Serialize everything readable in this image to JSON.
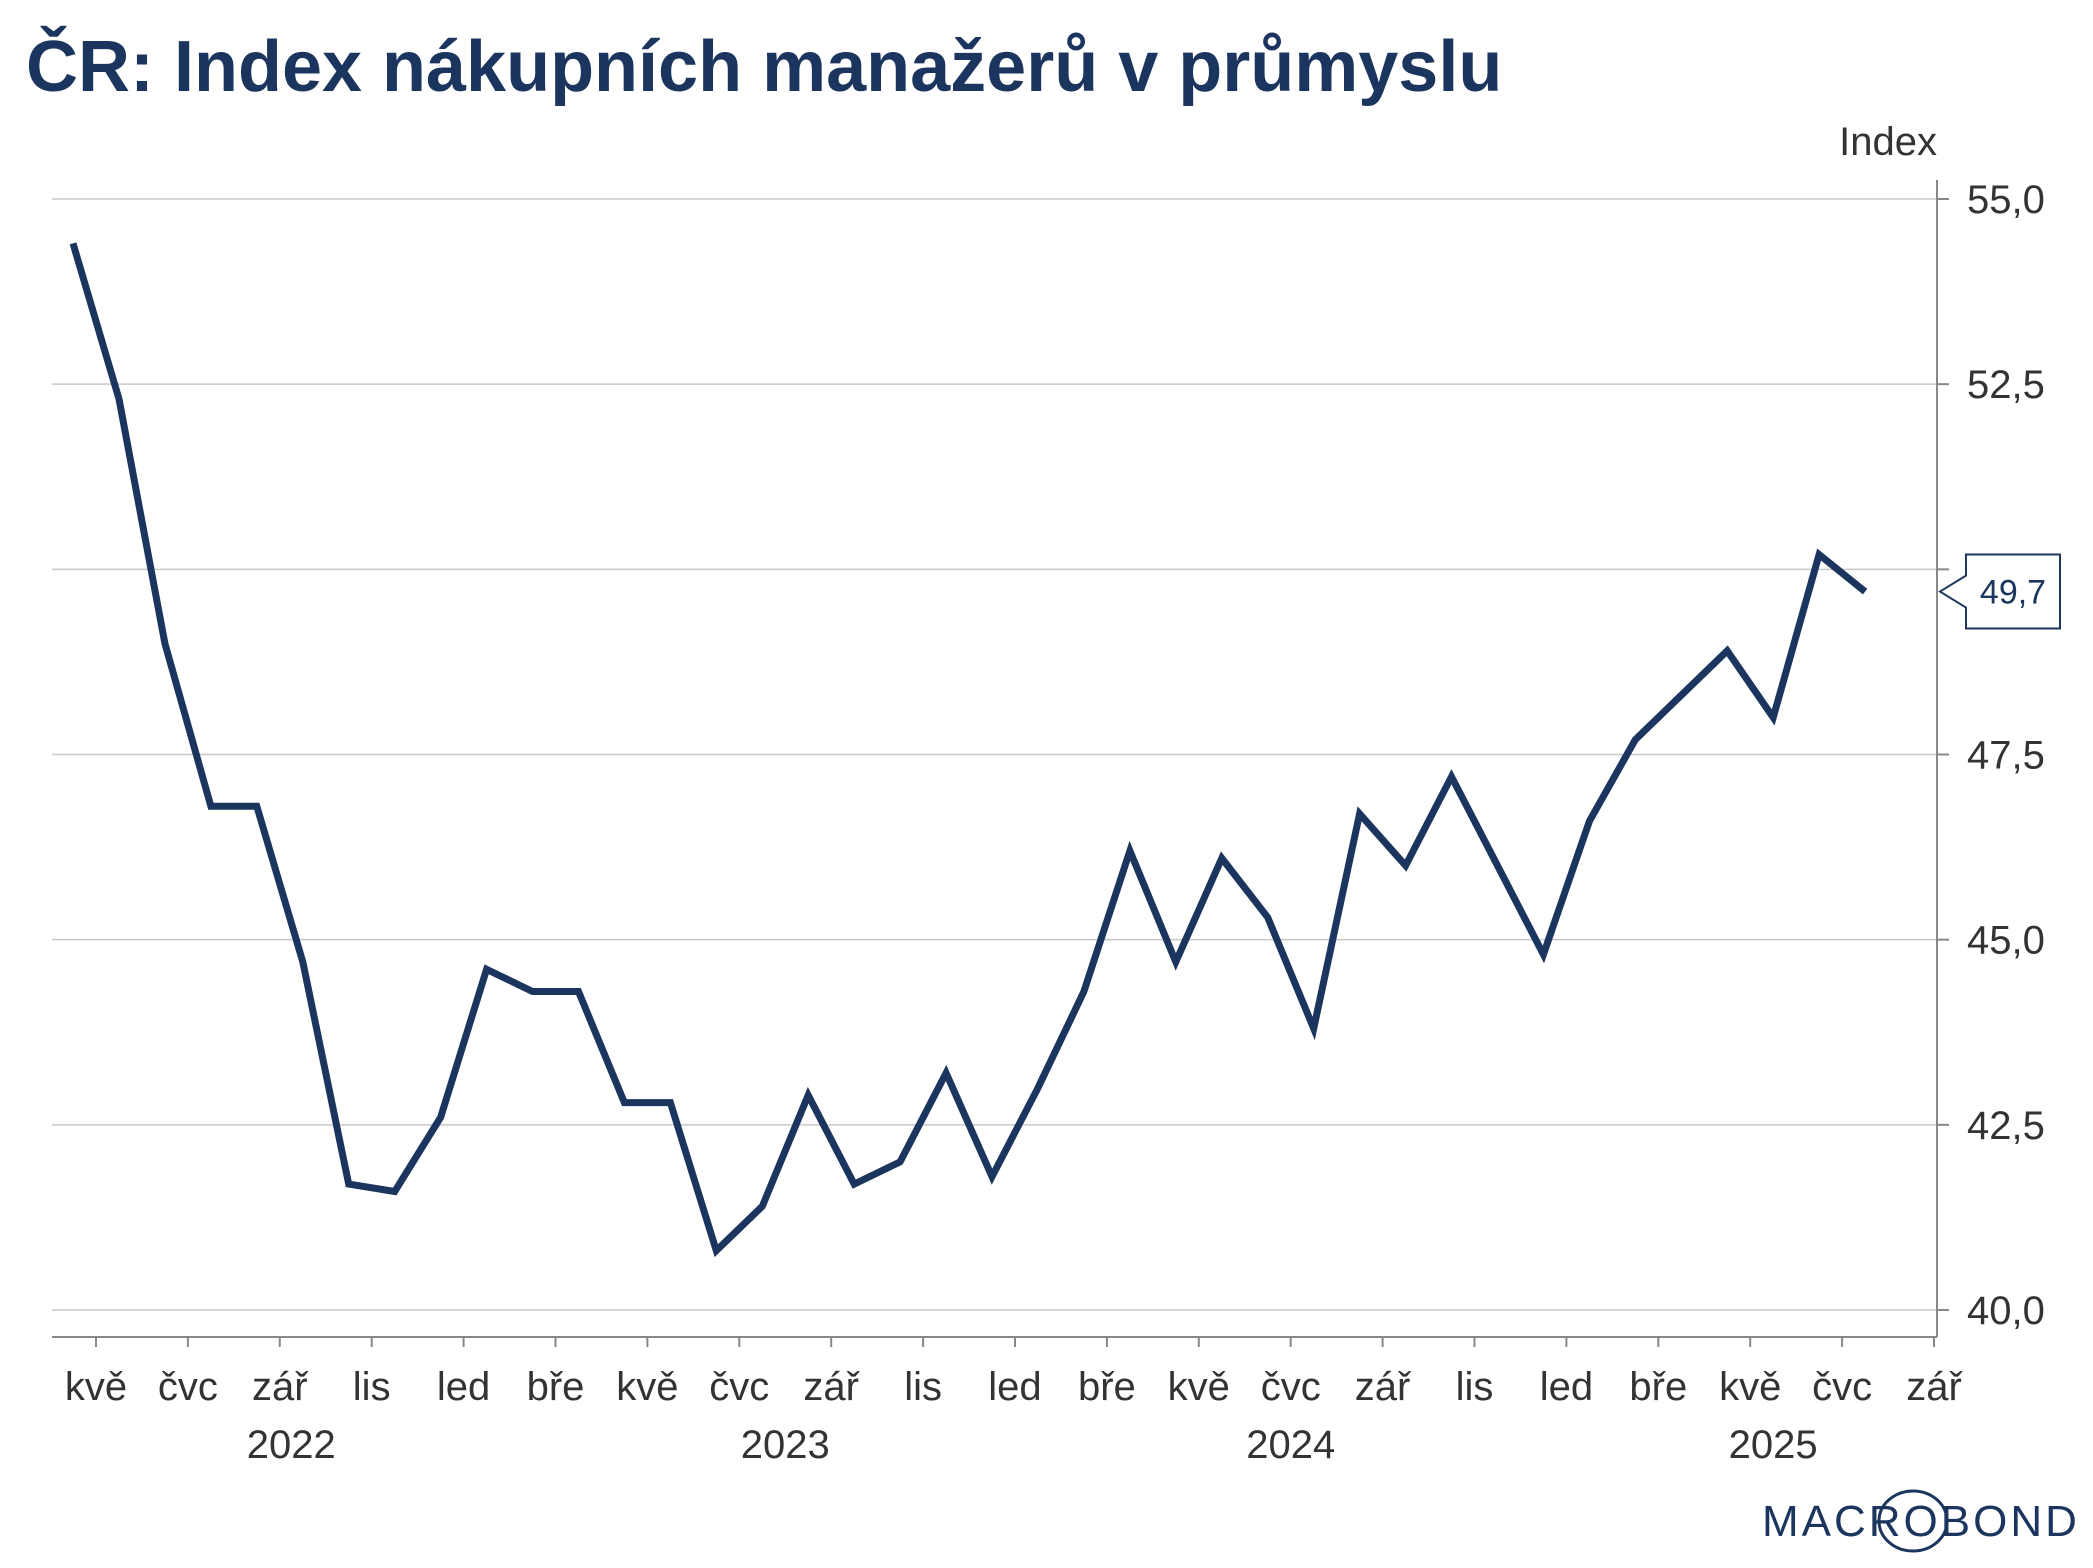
{
  "title": "ČR: Index nákupních manažerů v průmyslu",
  "colors": {
    "line": "#1b355e",
    "grid": "#c8c8c8",
    "axis": "#888888",
    "text": "#333333"
  },
  "logo": {
    "text": "MACROBOND"
  },
  "chart_data": {
    "type": "line",
    "title": "ČR: Index nákupních manažerů v průmyslu",
    "ylabel": "Index",
    "xlabel": "",
    "ylim": [
      40.0,
      55.0
    ],
    "y_ticks": [
      "55,0",
      "52,5",
      "50,0",
      "47,5",
      "45,0",
      "42,5",
      "40,0"
    ],
    "y_tick_values": [
      55.0,
      52.5,
      50.0,
      47.5,
      45.0,
      42.5,
      40.0
    ],
    "x_tick_labels": [
      "kvě",
      "čvc",
      "zář",
      "lis",
      "led",
      "bře",
      "kvě",
      "čvc",
      "zář",
      "lis",
      "led",
      "bře",
      "kvě",
      "čvc",
      "zář",
      "lis",
      "led",
      "bře",
      "kvě",
      "čvc",
      "zář"
    ],
    "year_labels": [
      "2022",
      "2023",
      "2024",
      "2025"
    ],
    "grid": true,
    "last_value_label": "49,7",
    "series": [
      {
        "x": [
          "2022-04",
          "2022-05",
          "2022-06",
          "2022-07",
          "2022-08",
          "2022-09",
          "2022-10",
          "2022-11",
          "2022-12",
          "2023-01",
          "2023-02",
          "2023-03",
          "2023-04",
          "2023-05",
          "2023-06",
          "2023-07",
          "2023-08",
          "2023-09",
          "2023-10",
          "2023-11",
          "2023-12",
          "2024-01",
          "2024-02",
          "2024-03",
          "2024-04",
          "2024-05",
          "2024-06",
          "2024-07",
          "2024-08",
          "2024-09",
          "2024-10",
          "2024-11",
          "2024-12",
          "2025-01",
          "2025-02",
          "2025-03",
          "2025-04",
          "2025-05",
          "2025-06",
          "2025-07"
        ],
        "values": [
          54.4,
          52.3,
          49.0,
          46.8,
          46.8,
          44.7,
          41.7,
          41.6,
          42.6,
          44.6,
          44.3,
          44.3,
          42.8,
          42.8,
          40.8,
          41.4,
          42.9,
          41.7,
          42.0,
          43.2,
          41.8,
          43.0,
          44.3,
          46.2,
          44.7,
          46.1,
          45.3,
          43.8,
          46.7,
          46.0,
          47.2,
          46.0,
          44.8,
          46.6,
          47.7,
          48.3,
          48.9,
          48.0,
          50.2,
          49.7
        ]
      }
    ]
  }
}
